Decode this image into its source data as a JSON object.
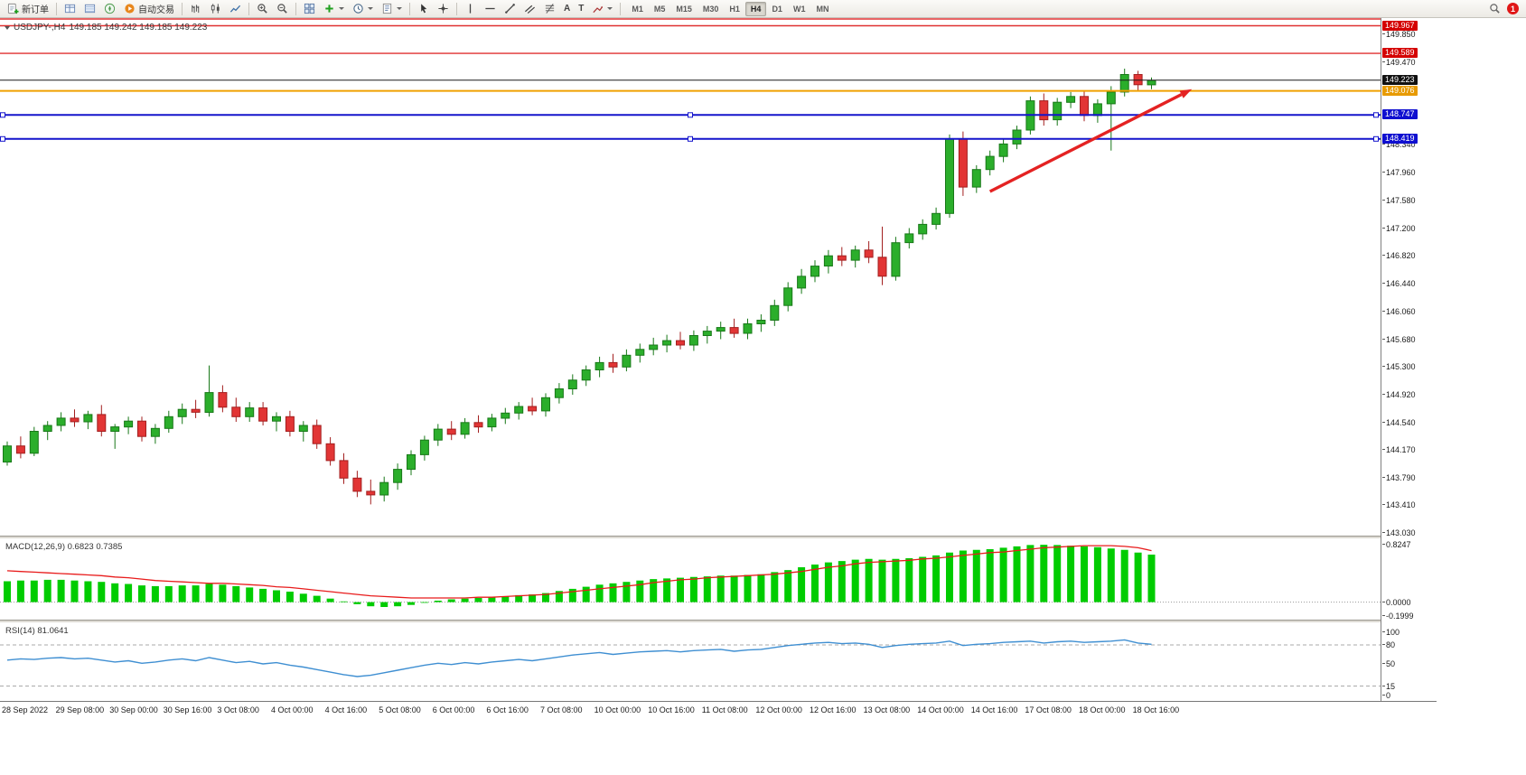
{
  "toolbar": {
    "new_order_label": "新订单",
    "autotrade_label": "自动交易",
    "text_tool": "A",
    "label_tool": "T",
    "timeframes": [
      "M1",
      "M5",
      "M15",
      "M30",
      "H1",
      "H4",
      "D1",
      "W1",
      "MN"
    ],
    "active_timeframe": "H4",
    "notification_count": "1"
  },
  "chart_title": {
    "symbol": "USDJPY-,H4",
    "ohlc": "149.185 149.242 149.185 149.223"
  },
  "colors": {
    "bull": "#2BAE2B",
    "bull_stroke": "#187818",
    "bear": "#E23535",
    "bear_stroke": "#A31F1F",
    "macd_histogram": "#00CC00",
    "macd_signal": "#E81C1C",
    "rsi_line": "#3F8FD2",
    "arrow": "#E42222",
    "red_line": "#E03131",
    "orange_line": "#F0A000",
    "blue_line": "#1414CC",
    "price_line": "#1A1A1A"
  },
  "chart_data": {
    "type": "candlestick",
    "symbol": "USDJPY-",
    "timeframe": "H4",
    "ylim": [
      142.99,
      150.07
    ],
    "current_price": "149.223",
    "price_scale_labels": [
      "149.850",
      "149.470",
      "148.340",
      "147.960",
      "147.580",
      "147.200",
      "146.820",
      "146.440",
      "146.060",
      "145.680",
      "145.300",
      "144.920",
      "144.540",
      "144.170",
      "143.790",
      "143.410",
      "143.030"
    ],
    "horizontal_lines": [
      {
        "price": 150.06,
        "label": null,
        "color": "#E03131",
        "width": 1.4
      },
      {
        "price": 149.967,
        "label": "149.967",
        "color": "#E03131",
        "badge_bg": "#D40000",
        "width": 1.4
      },
      {
        "price": 149.589,
        "label": "149.589",
        "color": "#E03131",
        "badge_bg": "#D40000",
        "width": 1.4
      },
      {
        "price": 149.223,
        "label": "149.223",
        "color": "#1A1A1A",
        "badge_bg": "#111111",
        "width": 1
      },
      {
        "price": 149.076,
        "label": "149.076",
        "color": "#F0A000",
        "badge_bg": "#E79A00",
        "width": 2
      },
      {
        "price": 148.747,
        "label": "148.747",
        "color": "#1414CC",
        "badge_bg": "#0F0FD0",
        "width": 2,
        "handles": true
      },
      {
        "price": 148.419,
        "label": "148.419",
        "color": "#1414CC",
        "badge_bg": "#0F0FD0",
        "width": 2,
        "handles": true
      }
    ],
    "trend_arrow": {
      "from_bar": 73,
      "from_price": 147.7,
      "to_bar": 88,
      "to_price": 149.1
    },
    "time_labels": [
      "28 Sep 2022",
      "29 Sep 08:00",
      "30 Sep 00:00",
      "30 Sep 16:00",
      "3 Oct 08:00",
      "4 Oct 00:00",
      "4 Oct 16:00",
      "5 Oct 08:00",
      "6 Oct 00:00",
      "6 Oct 16:00",
      "7 Oct 08:00",
      "10 Oct 00:00",
      "10 Oct 16:00",
      "11 Oct 08:00",
      "12 Oct 00:00",
      "12 Oct 16:00",
      "13 Oct 08:00",
      "14 Oct 00:00",
      "14 Oct 16:00",
      "17 Oct 08:00",
      "18 Oct 00:00",
      "18 Oct 16:00"
    ],
    "candles": [
      [
        144.0,
        144.28,
        143.95,
        144.22
      ],
      [
        144.22,
        144.35,
        144.05,
        144.12
      ],
      [
        144.12,
        144.48,
        144.08,
        144.42
      ],
      [
        144.42,
        144.56,
        144.3,
        144.5
      ],
      [
        144.5,
        144.68,
        144.42,
        144.6
      ],
      [
        144.6,
        144.72,
        144.48,
        144.55
      ],
      [
        144.55,
        144.7,
        144.45,
        144.65
      ],
      [
        144.65,
        144.78,
        144.35,
        144.42
      ],
      [
        144.42,
        144.52,
        144.18,
        144.48
      ],
      [
        144.48,
        144.62,
        144.38,
        144.56
      ],
      [
        144.56,
        144.62,
        144.28,
        144.35
      ],
      [
        144.35,
        144.52,
        144.25,
        144.46
      ],
      [
        144.46,
        144.7,
        144.4,
        144.62
      ],
      [
        144.62,
        144.8,
        144.52,
        144.72
      ],
      [
        144.72,
        144.85,
        144.6,
        144.68
      ],
      [
        144.68,
        145.32,
        144.62,
        144.95
      ],
      [
        144.95,
        145.05,
        144.68,
        144.75
      ],
      [
        144.75,
        144.88,
        144.55,
        144.62
      ],
      [
        144.62,
        144.82,
        144.55,
        144.74
      ],
      [
        144.74,
        144.82,
        144.5,
        144.56
      ],
      [
        144.56,
        144.68,
        144.42,
        144.62
      ],
      [
        144.62,
        144.7,
        144.35,
        144.42
      ],
      [
        144.42,
        144.56,
        144.28,
        144.5
      ],
      [
        144.5,
        144.58,
        144.18,
        144.25
      ],
      [
        144.25,
        144.34,
        143.95,
        144.02
      ],
      [
        144.02,
        144.12,
        143.7,
        143.78
      ],
      [
        143.78,
        143.88,
        143.52,
        143.6
      ],
      [
        143.6,
        143.76,
        143.42,
        143.55
      ],
      [
        143.55,
        143.8,
        143.46,
        143.72
      ],
      [
        143.72,
        143.98,
        143.62,
        143.9
      ],
      [
        143.9,
        144.16,
        143.82,
        144.1
      ],
      [
        144.1,
        144.36,
        144.02,
        144.3
      ],
      [
        144.3,
        144.52,
        144.22,
        144.45
      ],
      [
        144.45,
        144.56,
        144.3,
        144.38
      ],
      [
        144.38,
        144.6,
        144.32,
        144.54
      ],
      [
        144.54,
        144.64,
        144.4,
        144.48
      ],
      [
        144.48,
        144.66,
        144.42,
        144.6
      ],
      [
        144.6,
        144.74,
        144.52,
        144.67
      ],
      [
        144.67,
        144.82,
        144.58,
        144.76
      ],
      [
        144.76,
        144.88,
        144.64,
        144.7
      ],
      [
        144.7,
        144.94,
        144.62,
        144.88
      ],
      [
        144.88,
        145.08,
        144.8,
        145.0
      ],
      [
        145.0,
        145.2,
        144.92,
        145.12
      ],
      [
        145.12,
        145.32,
        145.04,
        145.26
      ],
      [
        145.26,
        145.44,
        145.16,
        145.36
      ],
      [
        145.36,
        145.48,
        145.22,
        145.3
      ],
      [
        145.3,
        145.54,
        145.24,
        145.46
      ],
      [
        145.46,
        145.62,
        145.36,
        145.54
      ],
      [
        145.54,
        145.7,
        145.46,
        145.6
      ],
      [
        145.6,
        145.74,
        145.5,
        145.66
      ],
      [
        145.66,
        145.78,
        145.54,
        145.6
      ],
      [
        145.6,
        145.8,
        145.52,
        145.73
      ],
      [
        145.73,
        145.86,
        145.62,
        145.79
      ],
      [
        145.79,
        145.92,
        145.68,
        145.84
      ],
      [
        145.84,
        145.96,
        145.7,
        145.76
      ],
      [
        145.76,
        145.96,
        145.68,
        145.89
      ],
      [
        145.89,
        146.02,
        145.78,
        145.94
      ],
      [
        145.94,
        146.22,
        145.86,
        146.14
      ],
      [
        146.14,
        146.46,
        146.06,
        146.38
      ],
      [
        146.38,
        146.64,
        146.3,
        146.54
      ],
      [
        146.54,
        146.76,
        146.46,
        146.68
      ],
      [
        146.68,
        146.9,
        146.58,
        146.82
      ],
      [
        146.82,
        146.94,
        146.68,
        146.76
      ],
      [
        146.76,
        146.96,
        146.66,
        146.9
      ],
      [
        146.9,
        147.02,
        146.72,
        146.8
      ],
      [
        146.8,
        147.22,
        146.42,
        146.54
      ],
      [
        146.54,
        147.08,
        146.48,
        147.0
      ],
      [
        147.0,
        147.2,
        146.92,
        147.12
      ],
      [
        147.12,
        147.32,
        147.04,
        147.25
      ],
      [
        147.25,
        147.48,
        147.18,
        147.4
      ],
      [
        147.4,
        148.48,
        147.34,
        148.42
      ],
      [
        148.42,
        148.52,
        147.64,
        147.76
      ],
      [
        147.76,
        148.06,
        147.68,
        148.0
      ],
      [
        148.0,
        148.26,
        147.92,
        148.18
      ],
      [
        148.18,
        148.42,
        148.1,
        148.35
      ],
      [
        148.35,
        148.6,
        148.28,
        148.54
      ],
      [
        148.54,
        149.0,
        148.48,
        148.94
      ],
      [
        148.94,
        149.04,
        148.6,
        148.68
      ],
      [
        148.68,
        148.98,
        148.6,
        148.92
      ],
      [
        148.92,
        149.06,
        148.84,
        149.0
      ],
      [
        149.0,
        149.08,
        148.66,
        148.74
      ],
      [
        148.74,
        148.96,
        148.64,
        148.9
      ],
      [
        148.9,
        149.14,
        148.26,
        149.06
      ],
      [
        149.06,
        149.38,
        149.0,
        149.3
      ],
      [
        149.3,
        149.35,
        149.08,
        149.16
      ],
      [
        149.16,
        149.26,
        149.1,
        149.22
      ]
    ],
    "indicators": [
      {
        "name": "MACD",
        "label": "MACD(12,26,9) 0.6823 0.7385",
        "type": "histogram+signal",
        "scale_labels": [
          "0.8247",
          "0.0000",
          "-0.1999"
        ],
        "range": [
          -0.1999,
          0.8247
        ],
        "histogram": [
          0.3,
          0.31,
          0.31,
          0.32,
          0.32,
          0.31,
          0.3,
          0.29,
          0.27,
          0.26,
          0.24,
          0.23,
          0.23,
          0.24,
          0.24,
          0.26,
          0.25,
          0.23,
          0.21,
          0.19,
          0.17,
          0.15,
          0.12,
          0.09,
          0.05,
          0.01,
          -0.03,
          -0.06,
          -0.07,
          -0.06,
          -0.04,
          -0.01,
          0.02,
          0.04,
          0.05,
          0.06,
          0.07,
          0.08,
          0.1,
          0.11,
          0.13,
          0.16,
          0.19,
          0.22,
          0.25,
          0.27,
          0.29,
          0.31,
          0.33,
          0.34,
          0.35,
          0.36,
          0.37,
          0.38,
          0.38,
          0.39,
          0.4,
          0.43,
          0.46,
          0.5,
          0.54,
          0.57,
          0.59,
          0.61,
          0.62,
          0.61,
          0.62,
          0.63,
          0.65,
          0.67,
          0.71,
          0.74,
          0.75,
          0.76,
          0.78,
          0.8,
          0.82,
          0.824,
          0.82,
          0.81,
          0.8,
          0.79,
          0.77,
          0.75,
          0.71,
          0.682
        ],
        "signal": [
          0.45,
          0.44,
          0.43,
          0.42,
          0.41,
          0.4,
          0.39,
          0.38,
          0.36,
          0.35,
          0.33,
          0.31,
          0.3,
          0.29,
          0.28,
          0.27,
          0.27,
          0.26,
          0.25,
          0.24,
          0.22,
          0.21,
          0.19,
          0.17,
          0.15,
          0.13,
          0.11,
          0.09,
          0.08,
          0.07,
          0.06,
          0.06,
          0.06,
          0.06,
          0.06,
          0.07,
          0.07,
          0.08,
          0.09,
          0.1,
          0.11,
          0.13,
          0.15,
          0.17,
          0.19,
          0.21,
          0.23,
          0.25,
          0.28,
          0.3,
          0.32,
          0.33,
          0.35,
          0.36,
          0.37,
          0.38,
          0.39,
          0.4,
          0.42,
          0.44,
          0.47,
          0.5,
          0.52,
          0.55,
          0.57,
          0.58,
          0.59,
          0.6,
          0.62,
          0.63,
          0.65,
          0.67,
          0.69,
          0.71,
          0.72,
          0.74,
          0.76,
          0.78,
          0.79,
          0.8,
          0.81,
          0.81,
          0.81,
          0.8,
          0.78,
          0.739
        ]
      },
      {
        "name": "RSI",
        "label": "RSI(14) 81.0641",
        "type": "line",
        "scale_labels": [
          "100",
          "80",
          "50",
          "15",
          "0"
        ],
        "range": [
          0,
          100
        ],
        "levels": [
          80,
          15
        ],
        "values": [
          56,
          58,
          57,
          59,
          60,
          58,
          59,
          56,
          53,
          55,
          51,
          53,
          56,
          58,
          55,
          60,
          56,
          52,
          54,
          50,
          52,
          48,
          45,
          41,
          37,
          33,
          30,
          32,
          36,
          40,
          44,
          48,
          51,
          49,
          52,
          50,
          53,
          55,
          57,
          55,
          58,
          61,
          64,
          66,
          68,
          65,
          67,
          69,
          70,
          71,
          69,
          71,
          72,
          73,
          70,
          72,
          73,
          76,
          79,
          81,
          83,
          84,
          82,
          83,
          81,
          76,
          79,
          81,
          82,
          83,
          86,
          79,
          81,
          82,
          84,
          85,
          86,
          83,
          85,
          86,
          84,
          85,
          86,
          88,
          83,
          81.06
        ]
      }
    ]
  }
}
